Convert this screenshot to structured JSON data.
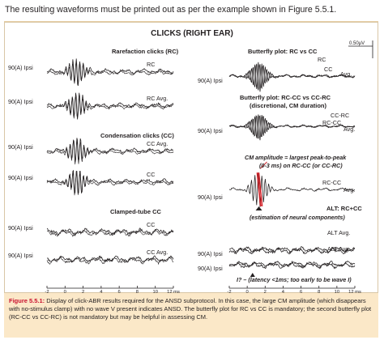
{
  "intro_text": "The resulting waveforms must be printed out as per the example shown in Figure 5.5.1.",
  "figure": {
    "title": "CLICKS (RIGHT EAR)",
    "scale_label": "0.50μV",
    "caption_label": "Figure 5.5.1:",
    "caption_text": " Display of click-ABR results required for the ANSD subprotocol. In this case, the large CM amplitude (which disappears with no-stimulus clamp) with no wave V present indicates ANSD. The butterfly plot for RC vs CC is mandatory; the second butterfly plot (RC-CC vs CC-RC) is not mandatory but may be helpful in assessing CM."
  },
  "chart_data": {
    "type": "line",
    "x_ticks": [
      "-2",
      "0",
      "2",
      "4",
      "6",
      "8",
      "10",
      "12 ms"
    ],
    "xlim": [
      -2,
      12
    ],
    "x_unit": "ms",
    "left_panel": {
      "section_labels": [
        "Rarefaction clicks (RC)",
        "Condensation clicks (CC)",
        "Clamped-tube CC"
      ],
      "traces": [
        {
          "level": "90(A) Ipsi",
          "label": "RC",
          "amplitude": 1.0,
          "cm": 1.0
        },
        {
          "level": "90(A) Ipsi",
          "label": "RC  Avg.",
          "amplitude": 1.0,
          "cm": 1.0
        },
        {
          "level": "90(A) Ipsi",
          "label": "CC  Avg.",
          "amplitude": 1.0,
          "cm": -1.0
        },
        {
          "level": "90(A) Ipsi",
          "label": "CC",
          "amplitude": 1.0,
          "cm": -1.0
        },
        {
          "level": "90(A) Ipsi",
          "label": "CC",
          "amplitude": 0.35,
          "cm": 0.0
        },
        {
          "level": "90(A) Ipsi",
          "label": "CC  Avg.",
          "amplitude": 0.35,
          "cm": 0.0
        }
      ]
    },
    "right_panel": {
      "annotations": [
        "Butterfly plot: RC vs CC",
        "Butterfly plot: RC-CC vs CC-RC",
        "(discretional, CM duration)",
        "CM amplitude = largest peak-to-peak",
        "(0-3 ms) on RC-CC (or CC-RC)",
        "ALT: RC+CC",
        "(estimation of neural components)",
        "I? – (latency <1ms; too early to be wave I)"
      ],
      "traces": [
        {
          "level": "90(A) Ipsi",
          "labels": [
            "RC",
            "CC",
            "Avg."
          ],
          "type": "butterfly"
        },
        {
          "level": "90(A) Ipsi",
          "labels": [
            "CC-RC",
            "RC-CC",
            "Avg."
          ],
          "type": "butterfly-cm"
        },
        {
          "level": "90(A) Ipsi",
          "labels": [
            "RC-CC",
            "Avg."
          ],
          "type": "cm-diff"
        },
        {
          "level": "90(A) Ipsi",
          "labels": [
            "ALT",
            "Avg."
          ],
          "type": "alt"
        },
        {
          "level": "90(A) Ipsi",
          "labels": [
            "ALT",
            "Avg."
          ],
          "type": "alt"
        }
      ]
    },
    "grid": false,
    "colors": {
      "trace": "#231f20",
      "highlight": "#d2232a",
      "caption_label": "#c8102e",
      "caption_bg": "#fbe8c8"
    }
  }
}
